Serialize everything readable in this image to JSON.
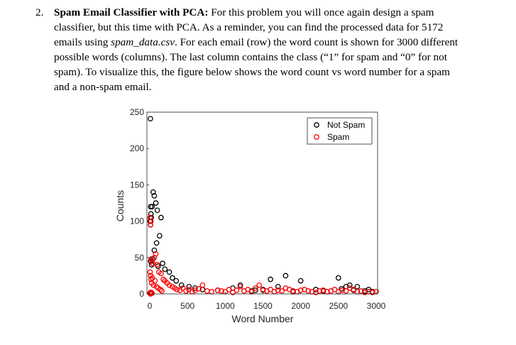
{
  "problem": {
    "number": "2.",
    "title": "Spam Email Classifier with PCA:",
    "text_a": " For this problem you will once again design a spam classifier, but this time with PCA. As a reminder, you can find the processed data for 5172 emails using ",
    "filename": "spam_data.csv",
    "text_b": ". For each email (row) the word count is shown for 3000 different possible words (columns). The last column contains the class (“1” for spam and “0” for not spam). To visualize this, the figure below shows the word count vs word number for a spam and a non-spam email."
  },
  "chart_data": {
    "type": "scatter",
    "title": "",
    "xlabel": "Word Number",
    "ylabel": "Counts",
    "xlim": [
      0,
      3000
    ],
    "ylim": [
      0,
      250
    ],
    "xticks": [
      0,
      500,
      1000,
      1500,
      2000,
      2500,
      3000
    ],
    "yticks": [
      0,
      50,
      100,
      150,
      200,
      250
    ],
    "grid": false,
    "legend_position": "top-right",
    "series": [
      {
        "name": "Not Spam",
        "color": "#000000",
        "marker": "open-circle",
        "x": [
          8,
          12,
          15,
          5,
          20,
          45,
          60,
          30,
          10,
          80,
          100,
          150,
          90,
          130,
          60,
          40,
          10,
          25,
          110,
          170,
          200,
          260,
          300,
          350,
          420,
          520,
          600,
          700,
          900,
          1100,
          1200,
          1350,
          1500,
          1600,
          1700,
          1800,
          2000,
          2200,
          2500,
          2540,
          2600,
          2650,
          2700,
          2750,
          2850,
          2950,
          1400,
          1900,
          2300,
          2900
        ],
        "y": [
          241,
          120,
          110,
          100,
          105,
          140,
          135,
          120,
          95,
          125,
          115,
          105,
          70,
          80,
          60,
          48,
          45,
          40,
          38,
          42,
          34,
          30,
          22,
          18,
          12,
          10,
          8,
          6,
          5,
          8,
          12,
          4,
          6,
          20,
          10,
          25,
          18,
          6,
          22,
          7,
          10,
          12,
          5,
          10,
          4,
          3,
          5,
          3,
          4,
          6
        ]
      },
      {
        "name": "Spam",
        "color": "#ff0000",
        "marker": "open-circle",
        "x": [
          5,
          10,
          15,
          20,
          30,
          40,
          60,
          80,
          100,
          120,
          150,
          180,
          200,
          230,
          260,
          300,
          330,
          360,
          400,
          440,
          480,
          520,
          560,
          600,
          650,
          700,
          760,
          820,
          900,
          950,
          1000,
          1050,
          1100,
          1150,
          1200,
          1250,
          1300,
          1350,
          1400,
          1450,
          1500,
          1550,
          1600,
          1650,
          1700,
          1750,
          1800,
          1850,
          1900,
          1950,
          2000,
          2050,
          2100,
          2150,
          2200,
          2250,
          2300,
          2350,
          2400,
          2450,
          2500,
          2550,
          2600,
          2650,
          2700,
          2750,
          2800,
          2850,
          2900,
          2950,
          3000,
          5,
          12,
          18,
          25,
          35,
          50,
          70,
          90,
          110,
          140,
          160,
          10,
          20,
          30,
          2,
          8
        ],
        "y": [
          105,
          95,
          100,
          48,
          45,
          42,
          50,
          55,
          40,
          30,
          28,
          20,
          18,
          15,
          12,
          10,
          8,
          6,
          5,
          8,
          4,
          6,
          3,
          5,
          7,
          12,
          4,
          3,
          5,
          4,
          3,
          6,
          2,
          5,
          10,
          4,
          6,
          3,
          8,
          12,
          5,
          4,
          6,
          3,
          5,
          4,
          8,
          6,
          4,
          3,
          5,
          6,
          4,
          3,
          2,
          4,
          5,
          3,
          4,
          6,
          3,
          5,
          4,
          8,
          6,
          3,
          4,
          2,
          3,
          2,
          3,
          30,
          25,
          20,
          15,
          22,
          12,
          18,
          10,
          8,
          6,
          4,
          2,
          2,
          1,
          1,
          0
        ]
      }
    ]
  }
}
